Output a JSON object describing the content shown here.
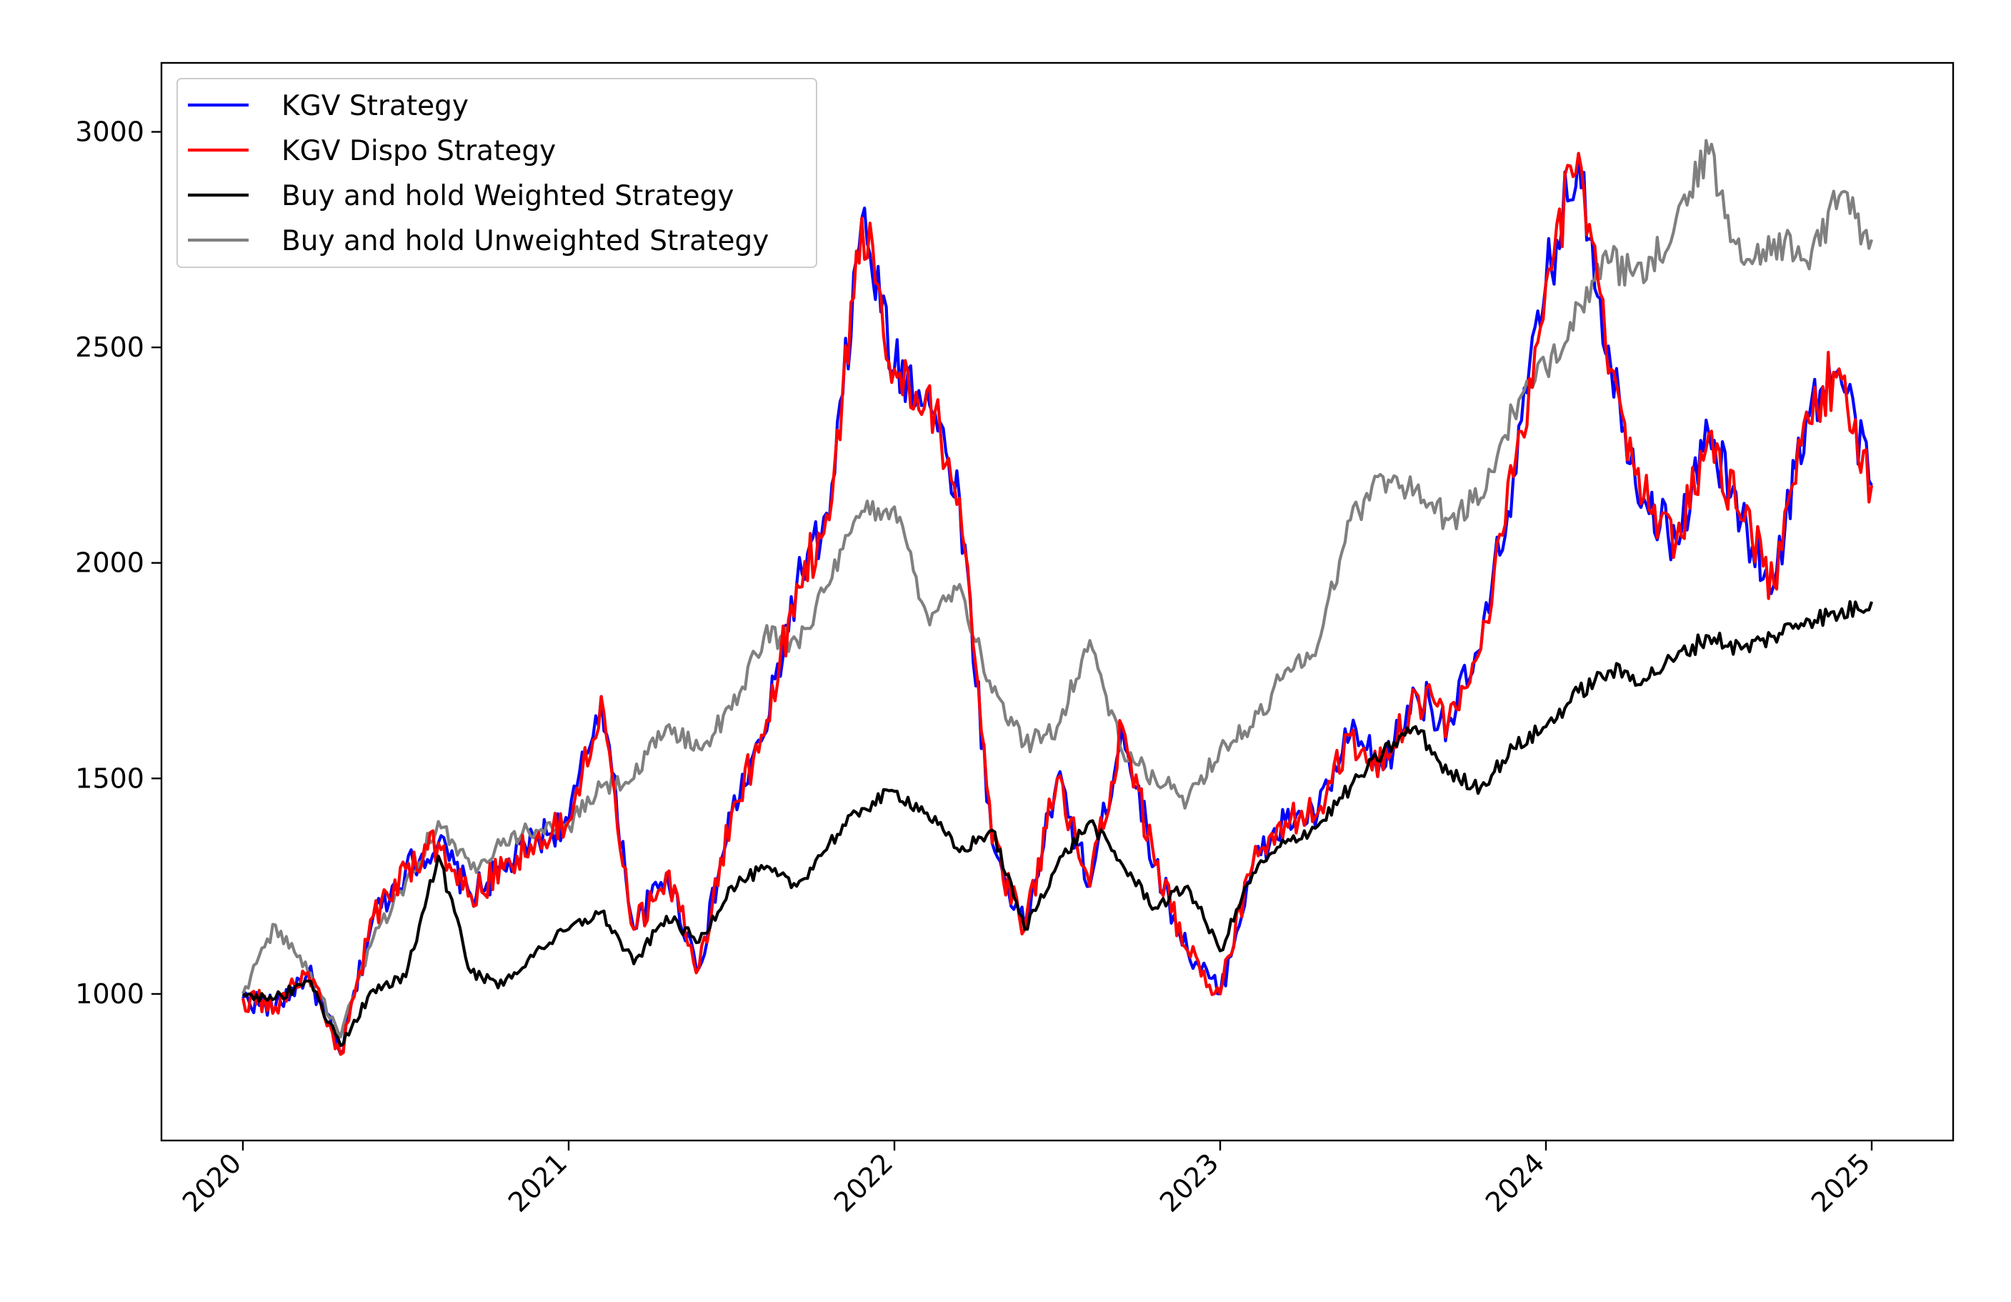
{
  "chart_data": {
    "type": "line",
    "title": "",
    "xlabel": "",
    "ylabel": "",
    "xlim": [
      2019.75,
      2025.25
    ],
    "ylim": [
      660,
      3160
    ],
    "x_ticks": [
      2020,
      2021,
      2022,
      2023,
      2024,
      2025
    ],
    "x_tick_labels": [
      "2020",
      "2021",
      "2022",
      "2023",
      "2024",
      "2025"
    ],
    "y_ticks": [
      1000,
      1500,
      2000,
      2500,
      3000
    ],
    "y_tick_labels": [
      "1000",
      "1500",
      "2000",
      "2500",
      "3000"
    ],
    "grid": false,
    "legend_position": "top-left",
    "series": [
      {
        "name": "KGV Strategy",
        "color": "#0000ff",
        "x": [
          2020.0,
          2020.1,
          2020.2,
          2020.3,
          2020.4,
          2020.5,
          2020.6,
          2020.7,
          2020.8,
          2020.9,
          2021.0,
          2021.1,
          2021.2,
          2021.3,
          2021.4,
          2021.5,
          2021.6,
          2021.7,
          2021.8,
          2021.9,
          2022.0,
          2022.1,
          2022.2,
          2022.3,
          2022.4,
          2022.5,
          2022.6,
          2022.7,
          2022.8,
          2022.9,
          2023.0,
          2023.1,
          2023.2,
          2023.3,
          2023.4,
          2023.5,
          2023.6,
          2023.7,
          2023.8,
          2023.9,
          2024.0,
          2024.1,
          2024.2,
          2024.3,
          2024.4,
          2024.5,
          2024.6,
          2024.7,
          2024.8,
          2024.9,
          2025.0
        ],
        "values": [
          990,
          970,
          1050,
          860,
          1180,
          1290,
          1350,
          1230,
          1290,
          1360,
          1400,
          1690,
          1150,
          1280,
          1060,
          1420,
          1600,
          1950,
          2100,
          2800,
          2450,
          2400,
          2150,
          1350,
          1150,
          1500,
          1250,
          1620,
          1300,
          1100,
          1000,
          1300,
          1400,
          1420,
          1600,
          1520,
          1700,
          1630,
          1800,
          2200,
          2650,
          2950,
          2450,
          2150,
          2050,
          2300,
          2100,
          1950,
          2350,
          2450,
          2180
        ]
      },
      {
        "name": "KGV Dispo Strategy",
        "color": "#ff0000",
        "x": [
          2020.0,
          2020.1,
          2020.2,
          2020.3,
          2020.4,
          2020.5,
          2020.6,
          2020.7,
          2020.8,
          2020.9,
          2021.0,
          2021.1,
          2021.2,
          2021.3,
          2021.4,
          2021.5,
          2021.6,
          2021.7,
          2021.8,
          2021.9,
          2022.0,
          2022.1,
          2022.2,
          2022.3,
          2022.4,
          2022.5,
          2022.6,
          2022.7,
          2022.8,
          2022.9,
          2023.0,
          2023.1,
          2023.2,
          2023.3,
          2023.4,
          2023.5,
          2023.6,
          2023.7,
          2023.8,
          2023.9,
          2024.0,
          2024.1,
          2024.2,
          2024.3,
          2024.4,
          2024.5,
          2024.6,
          2024.7,
          2024.8,
          2024.9,
          2025.0
        ],
        "values": [
          990,
          970,
          1050,
          860,
          1180,
          1290,
          1350,
          1230,
          1290,
          1360,
          1400,
          1690,
          1150,
          1280,
          1060,
          1420,
          1600,
          1950,
          2100,
          2800,
          2450,
          2400,
          2150,
          1350,
          1150,
          1500,
          1250,
          1620,
          1300,
          1100,
          1000,
          1300,
          1400,
          1420,
          1600,
          1520,
          1700,
          1630,
          1800,
          2200,
          2650,
          2950,
          2450,
          2150,
          2050,
          2300,
          2100,
          1950,
          2350,
          2450,
          2180
        ]
      },
      {
        "name": "Buy and hold Weighted Strategy",
        "color": "#000000",
        "x": [
          2020.0,
          2020.1,
          2020.2,
          2020.3,
          2020.4,
          2020.5,
          2020.6,
          2020.7,
          2020.8,
          2020.9,
          2021.0,
          2021.1,
          2021.2,
          2021.3,
          2021.4,
          2021.5,
          2021.6,
          2021.7,
          2021.8,
          2021.9,
          2022.0,
          2022.1,
          2022.2,
          2022.3,
          2022.4,
          2022.5,
          2022.6,
          2022.7,
          2022.8,
          2022.9,
          2023.0,
          2023.1,
          2023.2,
          2023.3,
          2023.4,
          2023.5,
          2023.6,
          2023.7,
          2023.8,
          2023.9,
          2024.0,
          2024.1,
          2024.2,
          2024.3,
          2024.4,
          2024.5,
          2024.6,
          2024.7,
          2024.8,
          2024.9,
          2025.0
        ],
        "values": [
          1000,
          990,
          1030,
          880,
          1010,
          1040,
          1320,
          1050,
          1020,
          1100,
          1150,
          1190,
          1070,
          1180,
          1120,
          1250,
          1290,
          1250,
          1350,
          1430,
          1470,
          1420,
          1330,
          1380,
          1150,
          1300,
          1400,
          1300,
          1200,
          1250,
          1100,
          1280,
          1350,
          1390,
          1480,
          1560,
          1620,
          1510,
          1480,
          1570,
          1620,
          1700,
          1750,
          1730,
          1780,
          1830,
          1800,
          1830,
          1870,
          1880,
          1910
        ]
      },
      {
        "name": "Buy and hold Unweighted Strategy",
        "color": "#808080",
        "x": [
          2020.0,
          2020.1,
          2020.2,
          2020.3,
          2020.4,
          2020.5,
          2020.6,
          2020.7,
          2020.8,
          2020.9,
          2021.0,
          2021.1,
          2021.2,
          2021.3,
          2021.4,
          2021.5,
          2021.6,
          2021.7,
          2021.8,
          2021.9,
          2022.0,
          2022.1,
          2022.2,
          2022.3,
          2022.4,
          2022.5,
          2022.6,
          2022.7,
          2022.8,
          2022.9,
          2023.0,
          2023.1,
          2023.2,
          2023.3,
          2023.4,
          2023.5,
          2023.6,
          2023.7,
          2023.8,
          2023.9,
          2024.0,
          2024.1,
          2024.2,
          2024.3,
          2024.4,
          2024.5,
          2024.6,
          2024.7,
          2024.8,
          2024.9,
          2025.0
        ],
        "values": [
          1000,
          1160,
          1050,
          900,
          1130,
          1260,
          1400,
          1290,
          1360,
          1380,
          1390,
          1480,
          1500,
          1620,
          1570,
          1660,
          1830,
          1820,
          1950,
          2120,
          2130,
          1880,
          1950,
          1700,
          1580,
          1620,
          1820,
          1560,
          1500,
          1450,
          1570,
          1620,
          1750,
          1810,
          2100,
          2200,
          2170,
          2100,
          2150,
          2350,
          2450,
          2600,
          2700,
          2650,
          2800,
          2950,
          2700,
          2750,
          2700,
          2850,
          2750
        ]
      }
    ]
  }
}
